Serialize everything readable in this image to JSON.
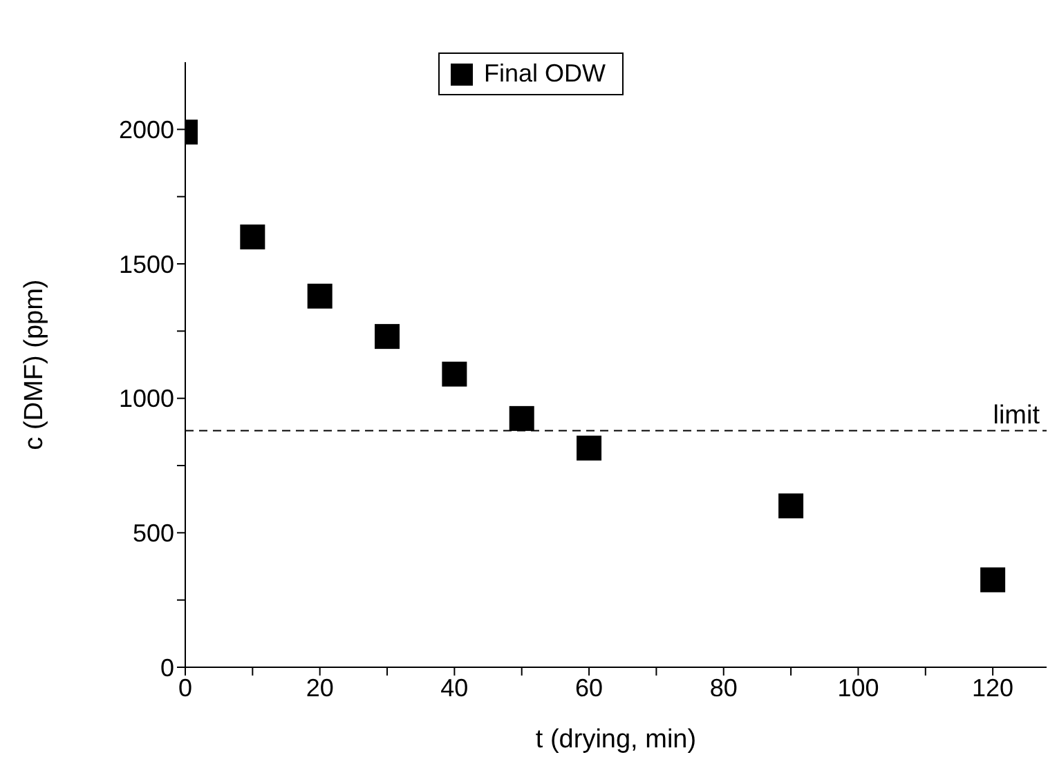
{
  "chart_data": {
    "type": "scatter",
    "xlabel": "t (drying, min)",
    "ylabel": "c (DMF) (ppm)",
    "x": [
      0,
      10,
      20,
      30,
      40,
      50,
      60,
      90,
      120
    ],
    "series": [
      {
        "name": "Final ODW",
        "color": "#000000",
        "values": [
          1990,
          1600,
          1380,
          1230,
          1090,
          925,
          815,
          600,
          325
        ]
      }
    ],
    "xlim": [
      0,
      128
    ],
    "ylim": [
      0,
      2250
    ],
    "xticks": [
      0,
      {
        "value": 10,
        "label": null
      },
      20,
      {
        "value": 30,
        "label": null
      },
      40,
      {
        "value": 50,
        "label": null
      },
      60,
      {
        "value": 70,
        "label": null
      },
      80,
      {
        "value": 90,
        "label": null
      },
      100,
      {
        "value": 110,
        "label": null
      },
      120
    ],
    "yticks": [
      0,
      {
        "value": 250,
        "label": null
      },
      500,
      {
        "value": 750,
        "label": null
      },
      1000,
      {
        "value": 1250,
        "label": null
      },
      1500,
      {
        "value": 1750,
        "label": null
      },
      2000
    ],
    "ref_lines": [
      {
        "axis": "y",
        "value": 880,
        "label": "limit",
        "line_style": "dashed",
        "color": "#000000"
      }
    ],
    "marker": "square",
    "legend": "top",
    "grid": false
  }
}
